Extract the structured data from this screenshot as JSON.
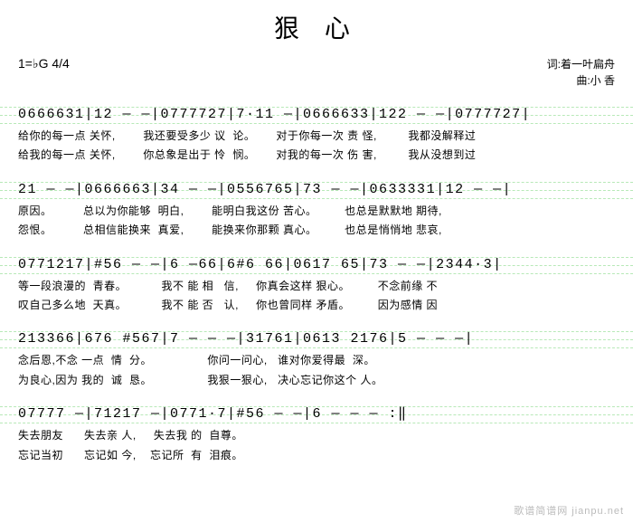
{
  "title": "狠 心",
  "key_signature": "1=♭G 4/4",
  "credits": {
    "lyricist": "词:着一叶扁舟",
    "composer": "曲:小 香"
  },
  "staves": [
    {
      "notation": "0666631|12 — —|0777727|7·11 —|0666633|122 — —|0777727|",
      "lyrics": [
        "给你的每一点 关怀,        我还要受多少 议  论。      对于你每一次 责 怪,         我都没解释过",
        "给我的每一点 关怀,        你总象是出于 怜  悯。      对我的每一次 伤 害,         我从没想到过"
      ]
    },
    {
      "notation": "21 — —|0666663|34 — —|0556765|73 — —|0633331|12 — —|",
      "lyrics": [
        "原因。         总以为你能够  明白,        能明白我这份 苦心。        也总是默默地 期待,",
        "怨恨。         总相信能换来  真爱,        能换来你那颗 真心。        也总是悄悄地 悲哀,"
      ]
    },
    {
      "notation": "0771217|#56 — —|6 —66|6#6 66|0617 65|73 — —|2344·3|",
      "lyrics": [
        "等一段浪漫的  青春。          我不 能 相   信,     你真会这样 狠心。        不念前缘 不",
        "叹自己多么地  天真。          我不 能 否   认,     你也曾同样 矛盾。        因为感情 因"
      ]
    },
    {
      "notation": "213366|676 #567|7 — — —|31761|0613 2176|5 — — —|",
      "lyrics": [
        "念后恩,不念 一点  情  分。                你问一问心,   谁对你爱得最  深。",
        "为良心,因为 我的  诚  恳。                我狠一狠心,   决心忘记你这个 人。"
      ]
    },
    {
      "notation": "07777 —|71217 —|0771·7|#56 — —|6 — — — :‖",
      "lyrics": [
        "失去朋友      失去亲 人,     失去我 的  自尊。",
        "忘记当初      忘记如 今,    忘记所  有  泪痕。"
      ]
    }
  ],
  "watermark": "歌谱简谱网 jianpu.net",
  "colors": {
    "background": "#ffffff",
    "text": "#000000",
    "guide_line": "#7fd87f",
    "watermark": "#bbbbbb"
  },
  "guide_line_offsets": [
    0,
    9,
    18
  ]
}
